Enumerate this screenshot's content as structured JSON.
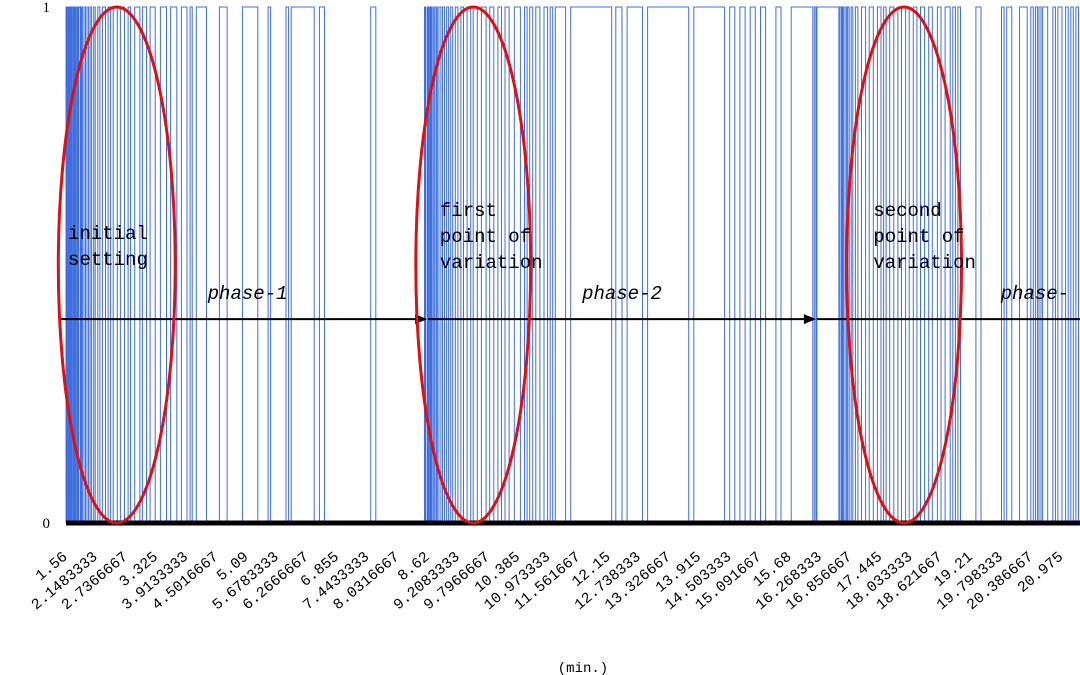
{
  "chart_data": {
    "type": "line",
    "title": "",
    "xlabel": "(min.)",
    "ylabel": "",
    "ylim": [
      0,
      1
    ],
    "xlim": [
      1.56,
      21.33
    ],
    "yticks": [
      "0",
      "1"
    ],
    "xticks": [
      "1.56",
      "2.1483333",
      "2.7366667",
      "3.325",
      "3.9133333",
      "4.5016667",
      "5.09",
      "5.6783333",
      "6.2666667",
      "6.855",
      "7.4433333",
      "8.0316667",
      "8.62",
      "9.2083333",
      "9.7966667",
      "10.385",
      "10.973333",
      "11.561667",
      "12.15",
      "12.738333",
      "13.326667",
      "13.915",
      "14.503333",
      "15.091667",
      "15.68",
      "16.268333",
      "16.856667",
      "17.445",
      "18.033333",
      "18.621667",
      "19.21",
      "19.798333",
      "20.386667",
      "20.975"
    ],
    "series": [
      {
        "color": "#3f6fe0",
        "style": "binary step signal (0/1)",
        "transitions": [
          1.56,
          1.58,
          1.59,
          1.6,
          1.62,
          1.63,
          1.64,
          1.66,
          1.67,
          1.69,
          1.7,
          1.72,
          1.73,
          1.75,
          1.77,
          1.79,
          1.81,
          1.84,
          1.86,
          1.88,
          1.91,
          1.94,
          1.97,
          2.0,
          2.03,
          2.06,
          2.1,
          2.13,
          2.18,
          2.22,
          2.27,
          2.33,
          2.38,
          2.43,
          2.48,
          2.56,
          2.62,
          2.7,
          2.77,
          2.82,
          2.9,
          3.0,
          3.05,
          3.13,
          3.2,
          3.3,
          3.4,
          3.52,
          3.6,
          3.72,
          3.81,
          3.92,
          3.98,
          4.02,
          4.1,
          4.3,
          4.55,
          4.7,
          5.0,
          5.3,
          5.5,
          5.55,
          5.85,
          5.9,
          5.95,
          6.4,
          6.5,
          6.6,
          7.5,
          7.6,
          8.55,
          8.57,
          8.6,
          8.62,
          8.64,
          8.66,
          8.68,
          8.7,
          8.73,
          8.75,
          8.78,
          8.8,
          8.83,
          8.87,
          8.9,
          8.94,
          8.98,
          9.02,
          9.06,
          9.1,
          9.15,
          9.2,
          9.26,
          9.31,
          9.38,
          9.45,
          9.5,
          9.58,
          9.66,
          9.75,
          9.82,
          9.9,
          9.98,
          10.05,
          10.12,
          10.2,
          10.3,
          10.42,
          10.5,
          10.55,
          10.6,
          10.66,
          10.72,
          10.8,
          10.88,
          10.95,
          11.0,
          11.05,
          11.1,
          11.3,
          11.4,
          12.2,
          12.28,
          12.4,
          12.5,
          12.8,
          12.9,
          13.7,
          13.8,
          14.4,
          14.5,
          14.6,
          14.7,
          14.8,
          14.9,
          15.0,
          15.1,
          15.2,
          15.4,
          15.5,
          15.7,
          16.12,
          16.15,
          16.18,
          16.2,
          16.63,
          16.65,
          16.68,
          16.7,
          16.72,
          16.75,
          16.78,
          16.8,
          16.83,
          16.87,
          16.9,
          16.95,
          17.0,
          17.07,
          17.15,
          17.22,
          17.3,
          17.38,
          17.45,
          17.5,
          17.55,
          17.62,
          17.7,
          17.78,
          17.85,
          17.93,
          18.0,
          18.08,
          18.15,
          18.22,
          18.3,
          18.38,
          18.45,
          18.55,
          18.62,
          18.7,
          18.8,
          18.85,
          18.9,
          18.95,
          19.0,
          19.3,
          19.4,
          19.8,
          19.85,
          19.9,
          20.0,
          20.15,
          20.3,
          20.37,
          20.42,
          20.46,
          20.5,
          20.53,
          20.57,
          20.6,
          20.7,
          20.8,
          20.85,
          20.9,
          20.98,
          21.05,
          21.1,
          21.15,
          21.2,
          21.25,
          21.3
        ]
      }
    ],
    "phase_arrow": {
      "y": 0.395,
      "arrows": [
        {
          "from": 1.56,
          "to": 8.62,
          "label": "phase-1",
          "label_x": 5.1
        },
        {
          "from": 8.62,
          "to": 16.2,
          "label": "phase-2",
          "label_x": 12.4
        },
        {
          "from": 16.2,
          "to": 21.33,
          "label": "phase-",
          "label_x": 20.45
        }
      ]
    },
    "highlights": [
      {
        "name": "initial setting",
        "lines": [
          "initial",
          "setting"
        ],
        "cx": 2.55,
        "cy": 0.5,
        "rx": 1.14,
        "ry": 0.5,
        "label_x": 1.6,
        "label_y": 0.55
      },
      {
        "name": "first point of variation",
        "lines": [
          "first",
          "point of",
          "variation"
        ],
        "cx": 9.5,
        "cy": 0.5,
        "rx": 1.12,
        "ry": 0.5,
        "label_x": 8.85,
        "label_y": 0.595
      },
      {
        "name": "second point of variation",
        "lines": [
          "second",
          "point of",
          "variation"
        ],
        "cx": 17.9,
        "cy": 0.5,
        "rx": 1.12,
        "ry": 0.5,
        "label_x": 17.3,
        "label_y": 0.595
      }
    ],
    "highlight_color": "#e01010",
    "grid": false,
    "legend": "none"
  }
}
